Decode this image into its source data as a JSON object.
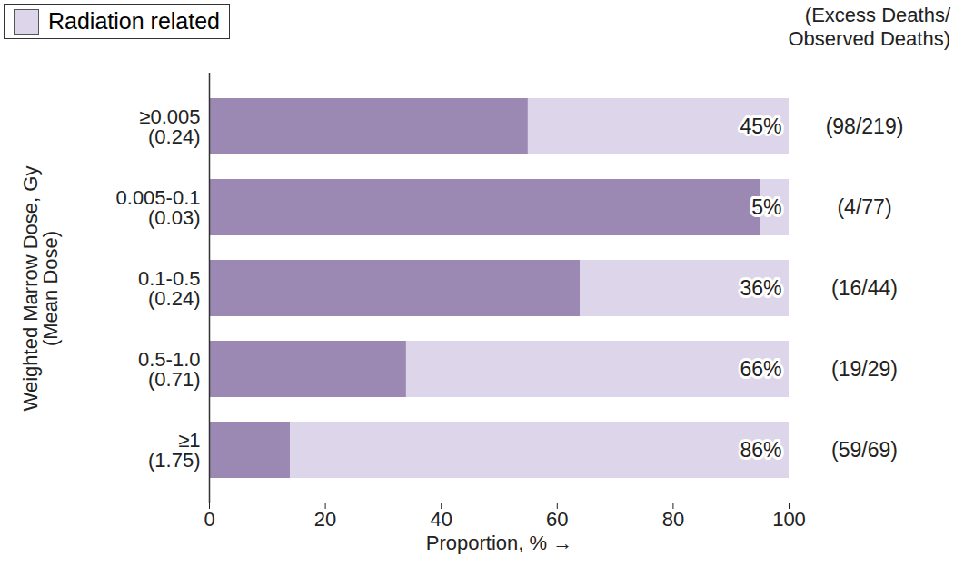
{
  "chart_data": {
    "type": "bar",
    "orientation": "horizontal",
    "stacked": true,
    "data_labels": true,
    "legend": "top-left",
    "categories": [
      "≥0.005\n(0.24)",
      "0.005-0.1\n(0.03)",
      "0.1-0.5\n(0.24)",
      "0.5-1.0\n(0.71)",
      "≥1\n(1.75)"
    ],
    "series": [
      {
        "name": null,
        "color": "#9b89b3",
        "values": [
          55,
          95,
          64,
          34,
          14
        ]
      },
      {
        "name": "Radiation related",
        "color": "#ddd6ea",
        "values": [
          45,
          5,
          36,
          66,
          86
        ],
        "value_labels": [
          "45%",
          "5%",
          "36%",
          "66%",
          "86%"
        ]
      }
    ],
    "annotations_title": "(Excess Deaths/\nObserved Deaths)",
    "annotations": [
      "(98/219)",
      "(4/77)",
      "(16/44)",
      "(19/29)",
      "(59/69)"
    ],
    "xlabel": "Proportion, %",
    "ylabel": "Weighted Marrow Dose, Gy\n(Mean Dose)",
    "xlim": [
      0,
      100
    ],
    "xticks": [
      0,
      20,
      40,
      60,
      80,
      100
    ],
    "grid": false
  }
}
